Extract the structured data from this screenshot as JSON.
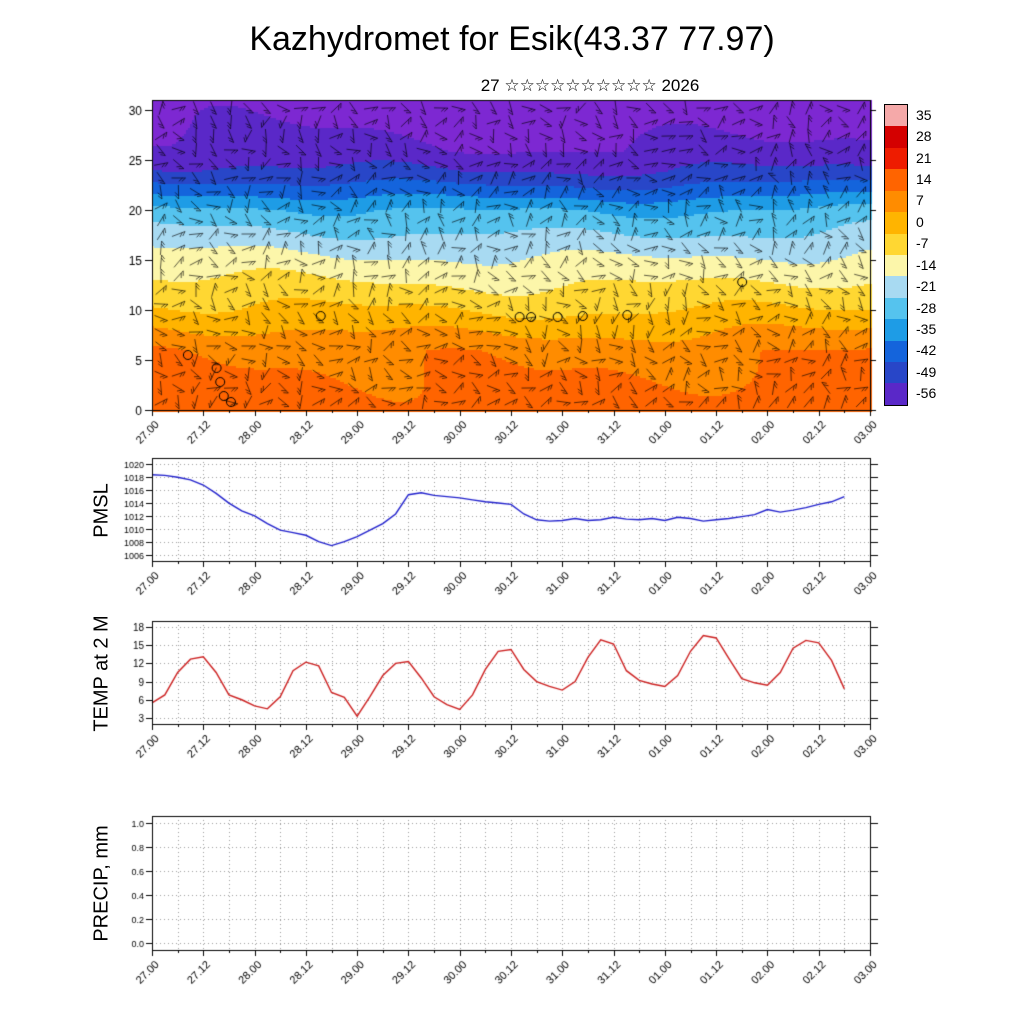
{
  "header": {
    "title": "Kazhydromet for Esik(43.37 77.97)",
    "subtitle": "27 ☆☆☆☆☆☆☆☆☆☆ 2026"
  },
  "chart_data": [
    {
      "id": "upper_air_cross_section",
      "type": "heatmap",
      "description": "Time-height cross section of temperature with wind barbs",
      "x_ticks": [
        "27.00",
        "27.12",
        "28.00",
        "28.12",
        "29.00",
        "29.12",
        "30.00",
        "30.12",
        "31.00",
        "31.12",
        "01.00",
        "01.12",
        "02.00",
        "02.12",
        "03.00"
      ],
      "y_ticks": [
        0,
        5,
        10,
        15,
        20,
        25,
        30
      ],
      "y_range": [
        0,
        31
      ],
      "colorbar": {
        "labels": [
          "35",
          "28",
          "21",
          "14",
          "7",
          "0",
          "-7",
          "-14",
          "-21",
          "-28",
          "-35",
          "-42",
          "-49",
          "-56"
        ],
        "colors": [
          "#f5a9a9",
          "#d40000",
          "#ee1c00",
          "#ff6400",
          "#ff8c00",
          "#ffb400",
          "#ffd732",
          "#fcf6aa",
          "#a8daf2",
          "#55c3ee",
          "#1e9ce6",
          "#1464dc",
          "#2846c8",
          "#5a28c8"
        ]
      },
      "below_color": "#7d28d2",
      "temp_profile": {
        "levels": [
          0,
          6,
          10,
          13,
          15,
          17,
          20,
          22,
          24,
          26,
          31
        ],
        "values": [
          18,
          13,
          1,
          -7,
          -12,
          -18,
          -27,
          -38,
          -48,
          -54,
          -60
        ]
      },
      "calm_markers": [
        {
          "x": 0.05,
          "y": 5.5
        },
        {
          "x": 0.09,
          "y": 4.2
        },
        {
          "x": 0.095,
          "y": 2.8
        },
        {
          "x": 0.1,
          "y": 1.4
        },
        {
          "x": 0.11,
          "y": 0.8
        },
        {
          "x": 0.235,
          "y": 9.4
        },
        {
          "x": 0.512,
          "y": 9.3
        },
        {
          "x": 0.528,
          "y": 9.3
        },
        {
          "x": 0.565,
          "y": 9.3
        },
        {
          "x": 0.6,
          "y": 9.4
        },
        {
          "x": 0.662,
          "y": 9.5
        },
        {
          "x": 0.822,
          "y": 12.8
        }
      ]
    },
    {
      "id": "pmsl",
      "type": "line",
      "label": "PMSL",
      "color": "#2020cc",
      "y_ticks": [
        1006,
        1008,
        1010,
        1012,
        1014,
        1016,
        1018,
        1020
      ],
      "y_range": [
        1005,
        1021
      ],
      "step_hours": 3,
      "values": [
        1018.4,
        1018.3,
        1018.0,
        1017.6,
        1016.8,
        1015.5,
        1014.0,
        1012.8,
        1012.0,
        1010.8,
        1009.8,
        1009.4,
        1009.0,
        1008.0,
        1007.4,
        1008.0,
        1008.8,
        1009.8,
        1010.8,
        1012.3,
        1015.3,
        1015.6,
        1015.2,
        1015.0,
        1014.8,
        1014.5,
        1014.2,
        1014.0,
        1013.8,
        1012.3,
        1011.4,
        1011.2,
        1011.3,
        1011.6,
        1011.3,
        1011.4,
        1011.8,
        1011.5,
        1011.4,
        1011.6,
        1011.3,
        1011.8,
        1011.6,
        1011.2,
        1011.4,
        1011.6,
        1011.9,
        1012.2,
        1013.0,
        1012.6,
        1012.9,
        1013.3,
        1013.8,
        1014.2,
        1015.0
      ]
    },
    {
      "id": "temp_2m",
      "type": "line",
      "label": "TEMP at 2 M",
      "color": "#cc2020",
      "y_ticks": [
        3,
        6,
        9,
        12,
        15,
        18
      ],
      "y_range": [
        2,
        19
      ],
      "step_hours": 3,
      "values": [
        5.5,
        6.8,
        10.5,
        12.7,
        13.1,
        10.5,
        6.8,
        6.0,
        5.0,
        4.5,
        6.5,
        10.8,
        12.2,
        11.6,
        7.2,
        6.4,
        3.3,
        6.5,
        10.0,
        12.0,
        12.3,
        9.6,
        6.5,
        5.2,
        4.4,
        6.8,
        11.0,
        14.0,
        14.3,
        11.0,
        9.0,
        8.2,
        7.6,
        9.0,
        13.0,
        15.9,
        15.2,
        10.8,
        9.2,
        8.6,
        8.2,
        10.0,
        14.0,
        16.6,
        16.2,
        12.8,
        9.5,
        8.8,
        8.4,
        10.5,
        14.5,
        15.8,
        15.4,
        12.5,
        7.8
      ]
    },
    {
      "id": "precip",
      "type": "line",
      "label": "PRECIP, mm",
      "color": "#2020cc",
      "y_ticks": [
        "0.0",
        "0.2",
        "0.4",
        "0.6",
        "0.8",
        "1.0"
      ],
      "y_range": [
        -0.06,
        1.06
      ],
      "step_hours": 3,
      "values": []
    }
  ]
}
